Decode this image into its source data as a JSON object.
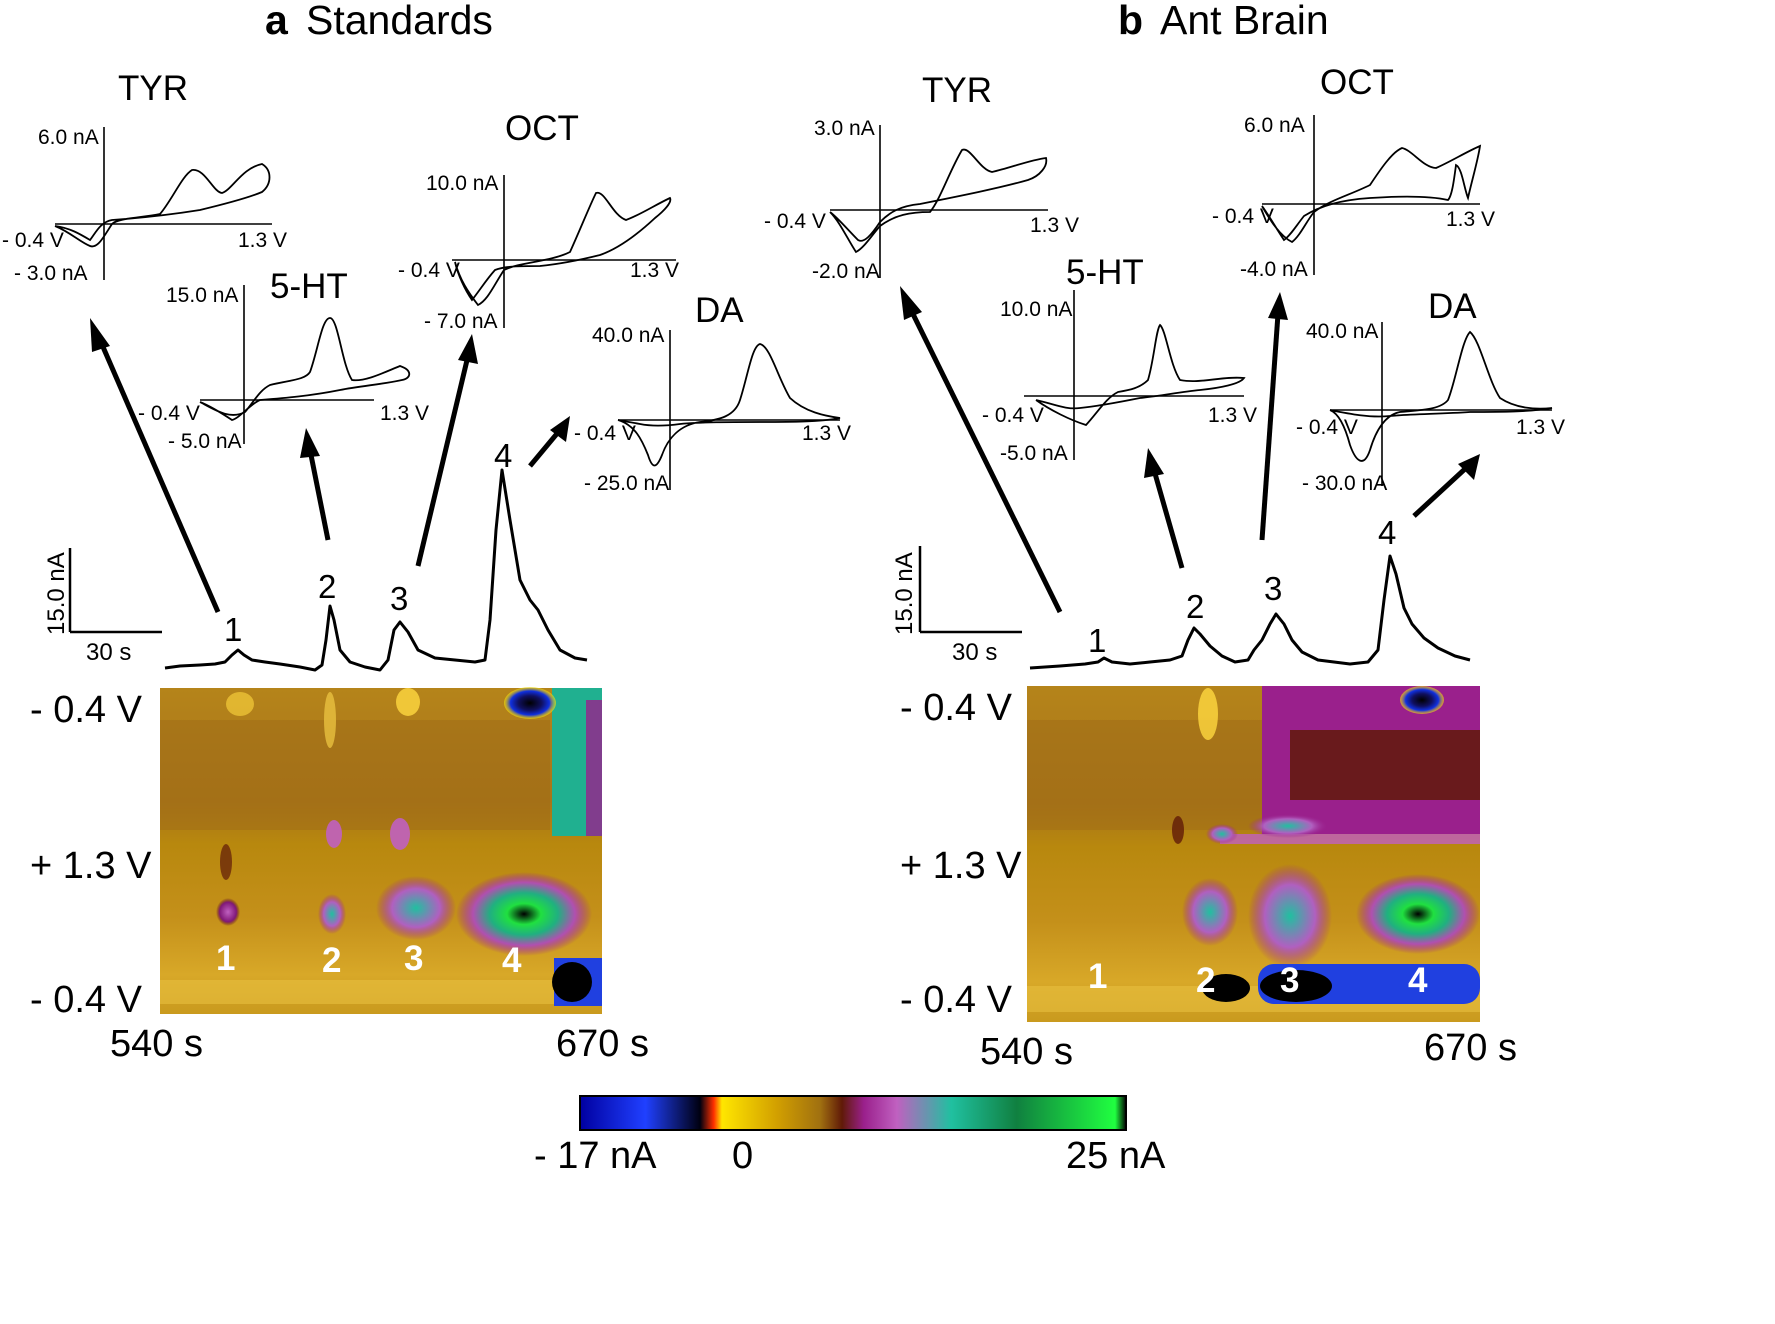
{
  "colors": {
    "trace": "#000000",
    "colorscale": [
      "#0000a0",
      "#2040ff",
      "#000000",
      "#ff3000",
      "#ffe600",
      "#d2a000",
      "#a07010",
      "#601a08",
      "#9a208c",
      "#c060c0",
      "#20c0a0",
      "#10a040",
      "#20ff40"
    ]
  },
  "chart_data": [
    {
      "type": "heatmap",
      "panel": "a",
      "title": "Standards",
      "peaks": [
        "1",
        "2",
        "3",
        "4"
      ],
      "trace": {
        "scale_y_label": "15.0 nA",
        "scale_x_label": "30 s",
        "peak_labels": [
          "1",
          "2",
          "3",
          "4"
        ]
      },
      "heatmap": {
        "y_tick_labels": [
          "- 0.4 V",
          "+ 1.3 V",
          "- 0.4 V"
        ],
        "x_tick_labels": [
          "540 s",
          "670 s"
        ],
        "x_range": [
          540,
          670
        ],
        "peak_labels": [
          "1",
          "2",
          "3",
          "4"
        ]
      },
      "cvs": [
        {
          "name": "TYR",
          "y_max_label": "6.0 nA",
          "y_min_label": "- 3.0 nA",
          "x_min_label": "- 0.4 V",
          "x_max_label": "1.3 V",
          "peak": "1"
        },
        {
          "name": "5-HT",
          "y_max_label": "15.0 nA",
          "y_min_label": "- 5.0 nA",
          "x_min_label": "- 0.4 V",
          "x_max_label": "1.3 V",
          "peak": "2"
        },
        {
          "name": "OCT",
          "y_max_label": "10.0 nA",
          "y_min_label": "- 7.0 nA",
          "x_min_label": "- 0.4 V",
          "x_max_label": "1.3 V",
          "peak": "3"
        },
        {
          "name": "DA",
          "y_max_label": "40.0 nA",
          "y_min_label": "- 25.0 nA",
          "x_min_label": "- 0.4 V",
          "x_max_label": "1.3 V",
          "peak": "4"
        }
      ]
    },
    {
      "type": "heatmap",
      "panel": "b",
      "title": "Ant Brain",
      "peaks": [
        "1",
        "2",
        "3",
        "4"
      ],
      "trace": {
        "scale_y_label": "15.0 nA",
        "scale_x_label": "30 s",
        "peak_labels": [
          "1",
          "2",
          "3",
          "4"
        ]
      },
      "heatmap": {
        "y_tick_labels": [
          "- 0.4 V",
          "+ 1.3 V",
          "- 0.4 V"
        ],
        "x_tick_labels": [
          "540 s",
          "670 s"
        ],
        "x_range": [
          540,
          670
        ],
        "peak_labels": [
          "1",
          "2",
          "3",
          "4"
        ]
      },
      "cvs": [
        {
          "name": "TYR",
          "y_max_label": "3.0 nA",
          "y_min_label": "-2.0 nA",
          "x_min_label": "- 0.4 V",
          "x_max_label": "1.3 V",
          "peak": "1"
        },
        {
          "name": "5-HT",
          "y_max_label": "10.0 nA",
          "y_min_label": "-5.0 nA",
          "x_min_label": "- 0.4 V",
          "x_max_label": "1.3 V",
          "peak": "2"
        },
        {
          "name": "OCT",
          "y_max_label": "6.0 nA",
          "y_min_label": "-4.0 nA",
          "x_min_label": "- 0.4 V",
          "x_max_label": "1.3 V",
          "peak": "3"
        },
        {
          "name": "DA",
          "y_max_label": "40.0 nA",
          "y_min_label": "- 30.0 nA",
          "x_min_label": "- 0.4 V",
          "x_max_label": "1.3 V",
          "peak": "4"
        }
      ]
    }
  ],
  "colorbar": {
    "min_label": "- 17 nA",
    "zero_label": "0",
    "max_label": "25 nA",
    "range_nA": [
      -17,
      25
    ]
  }
}
